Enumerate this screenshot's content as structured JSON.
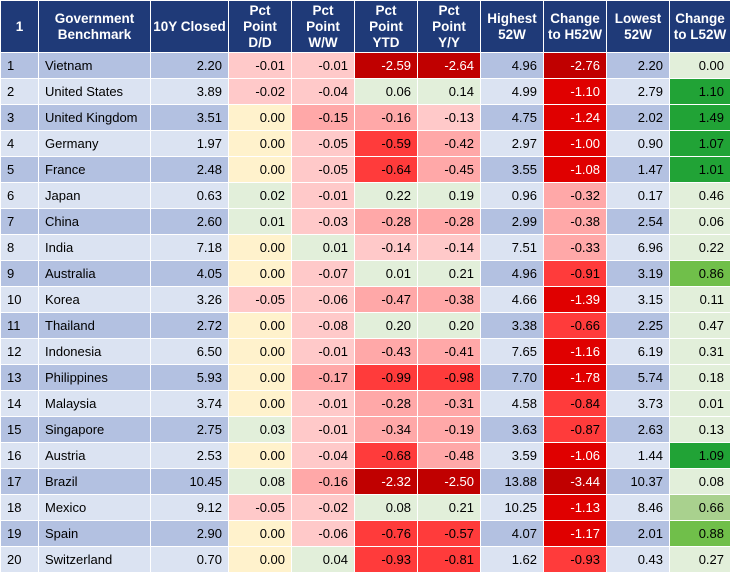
{
  "headers": {
    "index": "1",
    "benchmark": "Government Benchmark",
    "closed": "10Y Closed",
    "dd": "Pct Point D/D",
    "ww": "Pct Point W/W",
    "ytd": "Pct Point YTD",
    "yy": "Pct Point Y/Y",
    "h52": "Highest 52W",
    "chh52": "Change to H52W",
    "l52": "Lowest 52W",
    "chl52": "Change to L52W"
  },
  "rows": [
    {
      "i": "1",
      "name": "Vietnam",
      "closed": "2.20",
      "dd": "-0.01",
      "ww": "-0.01",
      "ytd": "-2.59",
      "yy": "-2.64",
      "h52": "4.96",
      "chh": "-2.76",
      "l52": "2.20",
      "chl": "0.00"
    },
    {
      "i": "2",
      "name": "United States",
      "closed": "3.89",
      "dd": "-0.02",
      "ww": "-0.04",
      "ytd": "0.06",
      "yy": "0.14",
      "h52": "4.99",
      "chh": "-1.10",
      "l52": "2.79",
      "chl": "1.10"
    },
    {
      "i": "3",
      "name": "United Kingdom",
      "closed": "3.51",
      "dd": "0.00",
      "ww": "-0.15",
      "ytd": "-0.16",
      "yy": "-0.13",
      "h52": "4.75",
      "chh": "-1.24",
      "l52": "2.02",
      "chl": "1.49"
    },
    {
      "i": "4",
      "name": "Germany",
      "closed": "1.97",
      "dd": "0.00",
      "ww": "-0.05",
      "ytd": "-0.59",
      "yy": "-0.42",
      "h52": "2.97",
      "chh": "-1.00",
      "l52": "0.90",
      "chl": "1.07"
    },
    {
      "i": "5",
      "name": "France",
      "closed": "2.48",
      "dd": "0.00",
      "ww": "-0.05",
      "ytd": "-0.64",
      "yy": "-0.45",
      "h52": "3.55",
      "chh": "-1.08",
      "l52": "1.47",
      "chl": "1.01"
    },
    {
      "i": "6",
      "name": "Japan",
      "closed": "0.63",
      "dd": "0.02",
      "ww": "-0.01",
      "ytd": "0.22",
      "yy": "0.19",
      "h52": "0.96",
      "chh": "-0.32",
      "l52": "0.17",
      "chl": "0.46"
    },
    {
      "i": "7",
      "name": "China",
      "closed": "2.60",
      "dd": "0.01",
      "ww": "-0.03",
      "ytd": "-0.28",
      "yy": "-0.28",
      "h52": "2.99",
      "chh": "-0.38",
      "l52": "2.54",
      "chl": "0.06"
    },
    {
      "i": "8",
      "name": "India",
      "closed": "7.18",
      "dd": "0.00",
      "ww": "0.01",
      "ytd": "-0.14",
      "yy": "-0.14",
      "h52": "7.51",
      "chh": "-0.33",
      "l52": "6.96",
      "chl": "0.22"
    },
    {
      "i": "9",
      "name": "Australia",
      "closed": "4.05",
      "dd": "0.00",
      "ww": "-0.07",
      "ytd": "0.01",
      "yy": "0.21",
      "h52": "4.96",
      "chh": "-0.91",
      "l52": "3.19",
      "chl": "0.86"
    },
    {
      "i": "10",
      "name": "Korea",
      "closed": "3.26",
      "dd": "-0.05",
      "ww": "-0.06",
      "ytd": "-0.47",
      "yy": "-0.38",
      "h52": "4.66",
      "chh": "-1.39",
      "l52": "3.15",
      "chl": "0.11"
    },
    {
      "i": "11",
      "name": "Thailand",
      "closed": "2.72",
      "dd": "0.00",
      "ww": "-0.08",
      "ytd": "0.20",
      "yy": "0.20",
      "h52": "3.38",
      "chh": "-0.66",
      "l52": "2.25",
      "chl": "0.47"
    },
    {
      "i": "12",
      "name": "Indonesia",
      "closed": "6.50",
      "dd": "0.00",
      "ww": "-0.01",
      "ytd": "-0.43",
      "yy": "-0.41",
      "h52": "7.65",
      "chh": "-1.16",
      "l52": "6.19",
      "chl": "0.31"
    },
    {
      "i": "13",
      "name": "Philippines",
      "closed": "5.93",
      "dd": "0.00",
      "ww": "-0.17",
      "ytd": "-0.99",
      "yy": "-0.98",
      "h52": "7.70",
      "chh": "-1.78",
      "l52": "5.74",
      "chl": "0.18"
    },
    {
      "i": "14",
      "name": "Malaysia",
      "closed": "3.74",
      "dd": "0.00",
      "ww": "-0.01",
      "ytd": "-0.28",
      "yy": "-0.31",
      "h52": "4.58",
      "chh": "-0.84",
      "l52": "3.73",
      "chl": "0.01"
    },
    {
      "i": "15",
      "name": "Singapore",
      "closed": "2.75",
      "dd": "0.03",
      "ww": "-0.01",
      "ytd": "-0.34",
      "yy": "-0.19",
      "h52": "3.63",
      "chh": "-0.87",
      "l52": "2.63",
      "chl": "0.13"
    },
    {
      "i": "16",
      "name": "Austria",
      "closed": "2.53",
      "dd": "0.00",
      "ww": "-0.04",
      "ytd": "-0.68",
      "yy": "-0.48",
      "h52": "3.59",
      "chh": "-1.06",
      "l52": "1.44",
      "chl": "1.09"
    },
    {
      "i": "17",
      "name": "Brazil",
      "closed": "10.45",
      "dd": "0.08",
      "ww": "-0.16",
      "ytd": "-2.32",
      "yy": "-2.50",
      "h52": "13.88",
      "chh": "-3.44",
      "l52": "10.37",
      "chl": "0.08"
    },
    {
      "i": "18",
      "name": "Mexico",
      "closed": "9.12",
      "dd": "-0.05",
      "ww": "-0.02",
      "ytd": "0.08",
      "yy": "0.21",
      "h52": "10.25",
      "chh": "-1.13",
      "l52": "8.46",
      "chl": "0.66"
    },
    {
      "i": "19",
      "name": "Spain",
      "closed": "2.90",
      "dd": "0.00",
      "ww": "-0.06",
      "ytd": "-0.76",
      "yy": "-0.57",
      "h52": "4.07",
      "chh": "-1.17",
      "l52": "2.01",
      "chl": "0.88"
    },
    {
      "i": "20",
      "name": "Switzerland",
      "closed": "0.70",
      "dd": "0.00",
      "ww": "0.04",
      "ytd": "-0.93",
      "yy": "-0.81",
      "h52": "1.62",
      "chh": "-0.93",
      "l52": "0.43",
      "chl": "0.27"
    }
  ]
}
